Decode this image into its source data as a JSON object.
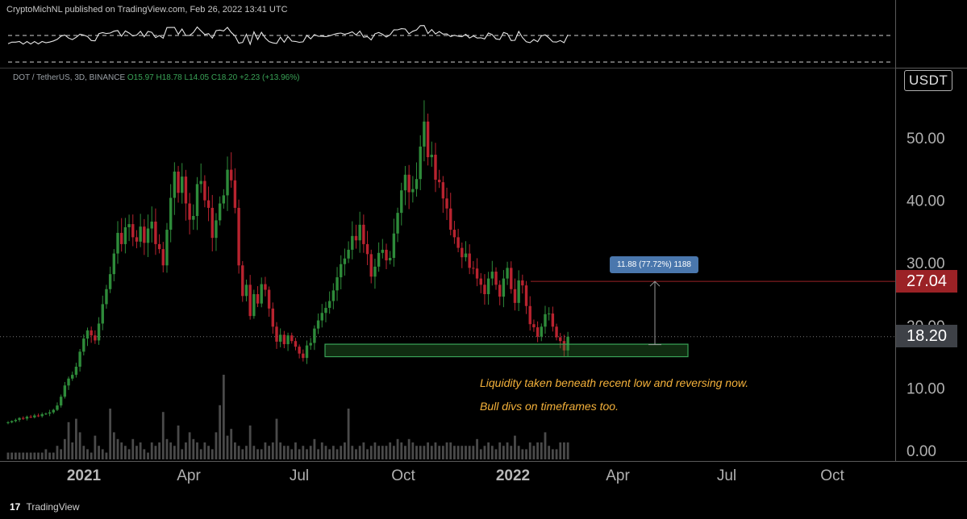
{
  "header": {
    "text": "CryptoMichNL published on TradingView.com, Feb 26, 2022 13:41 UTC"
  },
  "legend": {
    "symbol": "DOT / TetherUS, 3D, BINANCE",
    "open": "O15.97",
    "high": "H18.78",
    "low": "L14.05",
    "close": "C18.20",
    "change": "+2.23 (+13.96%)"
  },
  "currency_badge": "USDT",
  "price_tags": {
    "target": "27.04",
    "current": "18.20"
  },
  "measure_label": "11.88 (77.72%) 1188",
  "annotations": [
    "Liquidity taken beneath recent low and reversing now.",
    "Bull divs on timeframes too."
  ],
  "footer": {
    "logo": "17",
    "brand": "TradingView"
  },
  "colors": {
    "up": "#26a69a",
    "up_candle": "#2e8b3a",
    "down_candle": "#b8232f",
    "annotation": "#f4b13a",
    "zone_border": "#3aa357"
  },
  "chart_data": {
    "type": "candlestick",
    "title": "DOT / TetherUS, 3D, BINANCE",
    "y_ticks": [
      "0.00",
      "10.00",
      "20.00",
      "30.00",
      "40.00",
      "50.00"
    ],
    "ylim": [
      0,
      55
    ],
    "x_ticks": [
      "2021",
      "Apr",
      "Jul",
      "Oct",
      "2022",
      "Apr",
      "Jul",
      "Oct"
    ],
    "bold_x_ticks": [
      "2021",
      "2022"
    ],
    "last_price": 18.2,
    "target_price": 27.04,
    "support_zone": [
      15.0,
      17.0
    ],
    "close_series": [
      4.5,
      4.7,
      4.9,
      5.2,
      5.1,
      5.4,
      5.3,
      5.6,
      5.5,
      5.8,
      5.9,
      6.1,
      6.5,
      7.2,
      8.6,
      10.4,
      11.5,
      12.1,
      13.4,
      15.8,
      17.9,
      19.2,
      18.4,
      17.6,
      20.3,
      23.4,
      25.8,
      28.2,
      31.5,
      34.8,
      33.0,
      35.7,
      36.2,
      34.1,
      33.4,
      35.8,
      33.2,
      35.5,
      36.6,
      33.0,
      32.2,
      29.6,
      35.3,
      40.4,
      44.6,
      41.2,
      43.8,
      39.5,
      36.9,
      37.5,
      42.6,
      43.1,
      40.0,
      38.8,
      34.0,
      36.8,
      39.5,
      40.8,
      44.9,
      43.2,
      38.8,
      29.6,
      24.7,
      26.5,
      21.5,
      25.0,
      23.5,
      26.6,
      25.7,
      22.7,
      19.8,
      17.4,
      18.5,
      17.0,
      18.4,
      17.5,
      16.6,
      15.5,
      14.8,
      16.8,
      17.2,
      19.5,
      20.8,
      22.0,
      22.8,
      23.9,
      25.6,
      27.7,
      29.8,
      30.7,
      32.1,
      34.3,
      33.6,
      36.1,
      33.0,
      31.4,
      27.8,
      29.4,
      31.6,
      32.1,
      30.4,
      30.8,
      34.7,
      38.0,
      41.6,
      44.1,
      41.3,
      41.8,
      43.4,
      48.6,
      52.6,
      46.9,
      47.3,
      43.3,
      42.9,
      40.3,
      38.7,
      35.3,
      34.1,
      32.4,
      30.9,
      31.5,
      29.2,
      29.1,
      27.5,
      26.5,
      25.0,
      27.5,
      28.6,
      26.5,
      24.6,
      27.5,
      29.2,
      25.8,
      23.6,
      27.2,
      26.4,
      23.1,
      20.2,
      19.7,
      18.2,
      19.8,
      21.8,
      21.9,
      19.8,
      18.1,
      17.5,
      16.0,
      18.2
    ],
    "volume_series": [
      2,
      2,
      2,
      2,
      2,
      2,
      2,
      2,
      2,
      2,
      3,
      2,
      2,
      4,
      3,
      6,
      11,
      5,
      12,
      8,
      4,
      3,
      2,
      7,
      4,
      3,
      2,
      15,
      8,
      6,
      5,
      4,
      3,
      6,
      4,
      5,
      3,
      2,
      5,
      4,
      5,
      14,
      6,
      5,
      4,
      10,
      3,
      5,
      8,
      6,
      5,
      3,
      5,
      4,
      3,
      8,
      16,
      25,
      7,
      9,
      5,
      4,
      3,
      4,
      10,
      4,
      3,
      3,
      5,
      4,
      5,
      12,
      5,
      4,
      4,
      3,
      5,
      3,
      4,
      3,
      4,
      6,
      3,
      5,
      4,
      3,
      4,
      3,
      4,
      5,
      15,
      4,
      3,
      4,
      5,
      3,
      4,
      5,
      4,
      4,
      4,
      5,
      4,
      6,
      5,
      4,
      6,
      5,
      4,
      4,
      4,
      5,
      4,
      5,
      4,
      4,
      5,
      5,
      4,
      4,
      4,
      4,
      4,
      4,
      6,
      3,
      4,
      5,
      4,
      3,
      5,
      4,
      5,
      4,
      7,
      4,
      3,
      3,
      5,
      4,
      5,
      5,
      8,
      4,
      3,
      3,
      5,
      5,
      5
    ]
  }
}
